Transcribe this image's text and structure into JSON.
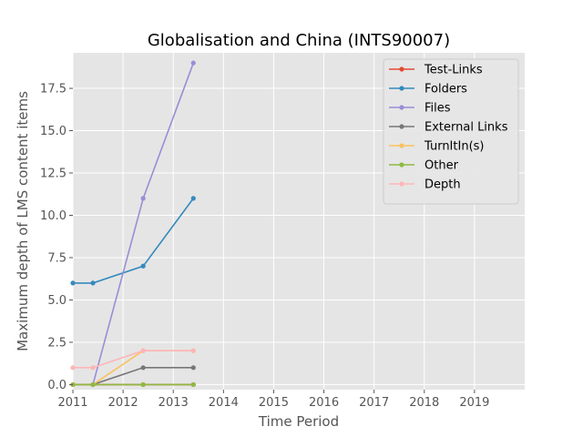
{
  "chart_data": {
    "type": "line",
    "title": "Globalisation and China (INTS90007)",
    "xlabel": "Time Period",
    "ylabel": "Maximum depth of LMS content items",
    "xlim": [
      2011,
      2020
    ],
    "ylim": [
      -0.3,
      19.6
    ],
    "grid": true,
    "legend_position": "top-right",
    "x_ticks": [
      2011,
      2012,
      2013,
      2014,
      2015,
      2016,
      2017,
      2018,
      2019
    ],
    "x_tick_labels": [
      "2011",
      "2012",
      "2013",
      "2014",
      "2015",
      "2016",
      "2017",
      "2018",
      "2019"
    ],
    "y_ticks": [
      0,
      2.5,
      5,
      7.5,
      10,
      12.5,
      15,
      17.5
    ],
    "y_tick_labels": [
      "0.0",
      "2.5",
      "5.0",
      "7.5",
      "10.0",
      "12.5",
      "15.0",
      "17.5"
    ],
    "series": [
      {
        "name": "Test-Links",
        "color": "#E24A33",
        "x": [
          2011.0,
          2011.4,
          2012.4,
          2013.4
        ],
        "y": [
          0,
          0,
          0,
          0
        ]
      },
      {
        "name": "Folders",
        "color": "#348ABD",
        "x": [
          2011.0,
          2011.4,
          2012.4,
          2013.4
        ],
        "y": [
          6,
          6,
          7,
          11
        ]
      },
      {
        "name": "Files",
        "color": "#988ED5",
        "x": [
          2011.4,
          2012.4,
          2013.4
        ],
        "y": [
          0,
          11,
          19
        ]
      },
      {
        "name": "External Links",
        "color": "#777777",
        "x": [
          2011.4,
          2012.4,
          2013.4
        ],
        "y": [
          0,
          1,
          1
        ]
      },
      {
        "name": "TurnItIn(s)",
        "color": "#FBC15E",
        "x": [
          2011.4,
          2012.4,
          2013.4
        ],
        "y": [
          0,
          2,
          2
        ]
      },
      {
        "name": "Other",
        "color": "#8EBA42",
        "x": [
          2011.0,
          2011.4,
          2012.4,
          2013.4
        ],
        "y": [
          0,
          0,
          0,
          0
        ]
      },
      {
        "name": "Depth",
        "color": "#FFB5B8",
        "x": [
          2011.0,
          2011.4,
          2012.4,
          2013.4
        ],
        "y": [
          1,
          1,
          2,
          2
        ]
      }
    ]
  }
}
